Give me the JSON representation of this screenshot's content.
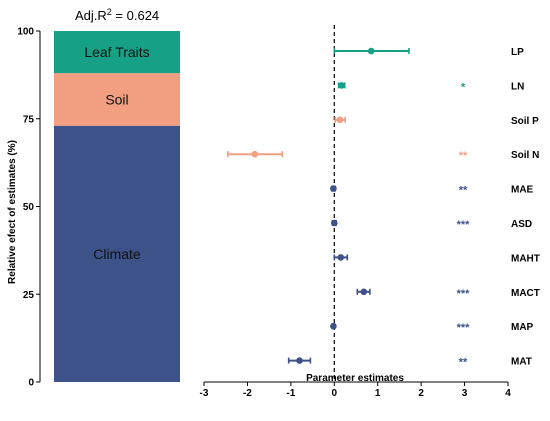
{
  "header": {
    "r2_prefix": "Adj.R",
    "r2_sup": "2",
    "r2_suffix": " = 0.624"
  },
  "colors": {
    "leaf": "#16a085",
    "soil": "#f29e80",
    "climate": "#3d5289"
  },
  "chart_data": [
    {
      "type": "bar",
      "stacked": true,
      "ylabel": "Relative efect of estimates (%)",
      "ylim": [
        0,
        100
      ],
      "yticks": [
        0,
        25,
        50,
        75,
        100
      ],
      "segments": [
        {
          "name": "Climate",
          "value": 73.0,
          "color_key": "climate"
        },
        {
          "name": "Soil",
          "value": 15.0,
          "color_key": "soil"
        },
        {
          "name": "Leaf  Traits",
          "value": 12.0,
          "color_key": "leaf"
        }
      ]
    },
    {
      "type": "scatter",
      "subtype": "forest-plot",
      "xlabel": "Parameter estimates",
      "xlim": [
        -3,
        4
      ],
      "xticks": [
        -3,
        -2,
        -1,
        0,
        1,
        2,
        3,
        4
      ],
      "reference_line": 0,
      "rows": [
        {
          "label": "LP",
          "estimate": 0.85,
          "ci": [
            0.0,
            1.72
          ],
          "stars": "",
          "group": "leaf"
        },
        {
          "label": "LN",
          "estimate": 0.17,
          "ci": [
            0.1,
            0.24
          ],
          "stars": "*",
          "group": "leaf"
        },
        {
          "label": "Soil P",
          "estimate": 0.13,
          "ci": [
            0.02,
            0.25
          ],
          "stars": "",
          "group": "soil"
        },
        {
          "label": "Soil N",
          "estimate": -1.83,
          "ci": [
            -2.45,
            -1.2
          ],
          "stars": "**",
          "group": "soil"
        },
        {
          "label": "MAE",
          "estimate": -0.02,
          "ci": [
            -0.06,
            0.02
          ],
          "stars": "**",
          "group": "climate"
        },
        {
          "label": "ASD",
          "estimate": 0.0,
          "ci": [
            -0.04,
            0.04
          ],
          "stars": "***",
          "group": "climate"
        },
        {
          "label": "MAHT",
          "estimate": 0.15,
          "ci": [
            0.0,
            0.3
          ],
          "stars": "",
          "group": "climate"
        },
        {
          "label": "MACT",
          "estimate": 0.68,
          "ci": [
            0.53,
            0.82
          ],
          "stars": "***",
          "group": "climate"
        },
        {
          "label": "MAP",
          "estimate": -0.02,
          "ci": [
            -0.05,
            0.01
          ],
          "stars": "***",
          "group": "climate"
        },
        {
          "label": "MAT",
          "estimate": -0.8,
          "ci": [
            -1.05,
            -0.55
          ],
          "stars": "**",
          "group": "climate"
        }
      ]
    }
  ]
}
